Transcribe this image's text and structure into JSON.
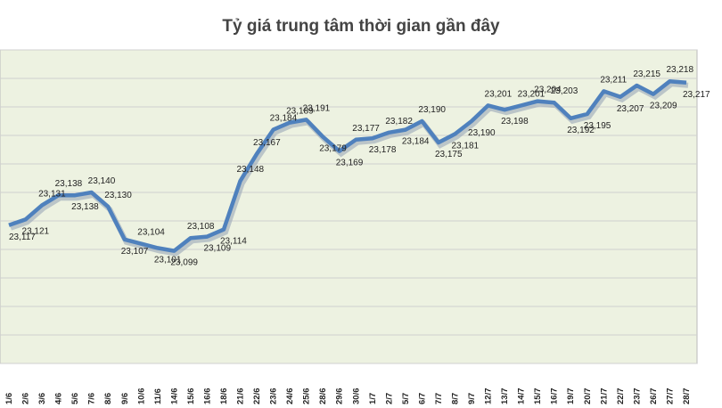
{
  "chart_data": {
    "type": "line",
    "title": "Tỷ giá trung tâm thời gian gần đây",
    "categories": [
      "1/6",
      "2/6",
      "3/6",
      "4/6",
      "5/6",
      "7/6",
      "8/6",
      "9/6",
      "10/6",
      "11/6",
      "14/6",
      "15/6",
      "16/6",
      "18/6",
      "21/6",
      "22/6",
      "23/6",
      "24/6",
      "25/6",
      "28/6",
      "29/6",
      "30/6",
      "1/7",
      "2/7",
      "5/7",
      "6/7",
      "7/7",
      "8/7",
      "9/7",
      "12/7",
      "13/7",
      "14/7",
      "15/7",
      "16/7",
      "19/7",
      "20/7",
      "21/7",
      "22/7",
      "23/7",
      "26/7",
      "27/7",
      "28/7"
    ],
    "series": [
      {
        "name": "Tỷ giá trung tâm",
        "color": "#4f81bd",
        "values": [
          23117,
          23121,
          23131,
          23138,
          23138,
          23140,
          23130,
          23107,
          23104,
          23101,
          23099,
          23108,
          23109,
          23114,
          23148,
          23167,
          23184,
          23189,
          23191,
          23179,
          23169,
          23177,
          23178,
          23182,
          23184,
          23190,
          23175,
          23181,
          23190,
          23201,
          23198,
          23201,
          23204,
          23203,
          23192,
          23195,
          23211,
          23207,
          23215,
          23209,
          23218,
          23217
        ],
        "value_labels": [
          "23,117",
          "23,121",
          "23,131",
          "23,138",
          "23,138",
          "23,140",
          "23,130",
          "23,107",
          "23,104",
          "23,101",
          "23,099",
          "23,108",
          "23,109",
          "23,114",
          "23,148",
          "23,167",
          "23,184",
          "23,189",
          "23,191",
          "23,179",
          "23,169",
          "23,177",
          "23,178",
          "23,182",
          "23,184",
          "23,190",
          "23,175",
          "23,181",
          "23,190",
          "23,201",
          "23,198",
          "23,201",
          "23,204",
          "23,203",
          "23,192",
          "23,195",
          "23,211",
          "23,207",
          "23,215",
          "23,209",
          "23,218",
          "23,217"
        ]
      }
    ],
    "ylim": [
      23020,
      23240
    ],
    "yticks": [
      23020,
      23040,
      23060,
      23080,
      23100,
      23120,
      23140,
      23160,
      23180,
      23200,
      23220,
      23240
    ],
    "grid": true
  }
}
